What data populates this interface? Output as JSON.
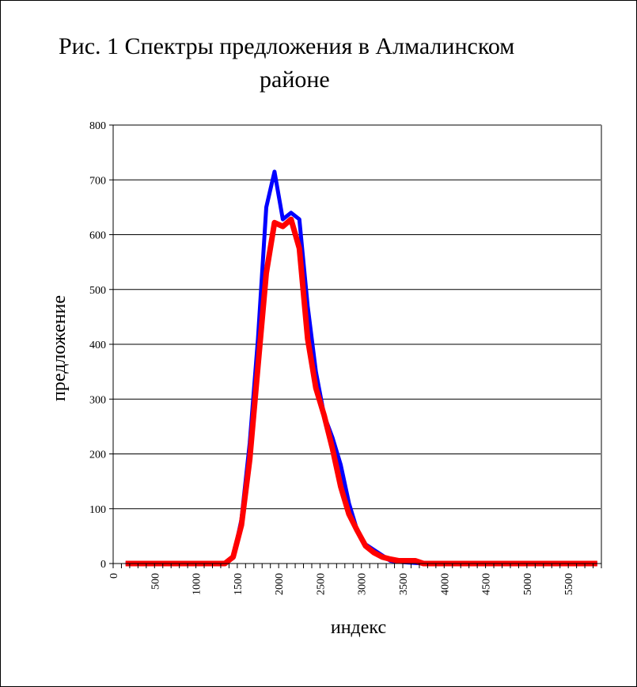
{
  "title_line1": "Рис. 1 Спектры предложения в Алмалинском",
  "title_line2": "районе",
  "chart_data": {
    "type": "line",
    "xlabel": "индекс",
    "ylabel": "предложение",
    "xlim": [
      0,
      5900
    ],
    "ylim": [
      0,
      800
    ],
    "yticks": [
      0,
      100,
      200,
      300,
      400,
      500,
      600,
      700,
      800
    ],
    "xticks": [
      0,
      500,
      1000,
      1500,
      2000,
      2500,
      3000,
      3500,
      4000,
      4500,
      5000,
      5500
    ],
    "grid": "horizontal",
    "series": [
      {
        "color": "#0000ff",
        "points": [
          [
            150,
            0
          ],
          [
            250,
            0
          ],
          [
            350,
            0
          ],
          [
            450,
            0
          ],
          [
            550,
            0
          ],
          [
            650,
            0
          ],
          [
            750,
            0
          ],
          [
            850,
            0
          ],
          [
            950,
            0
          ],
          [
            1050,
            0
          ],
          [
            1150,
            0
          ],
          [
            1250,
            0
          ],
          [
            1350,
            0
          ],
          [
            1450,
            10
          ],
          [
            1550,
            80
          ],
          [
            1650,
            220
          ],
          [
            1750,
            410
          ],
          [
            1850,
            650
          ],
          [
            1950,
            715
          ],
          [
            2050,
            628
          ],
          [
            2150,
            640
          ],
          [
            2250,
            628
          ],
          [
            2350,
            470
          ],
          [
            2450,
            350
          ],
          [
            2550,
            270
          ],
          [
            2650,
            230
          ],
          [
            2750,
            180
          ],
          [
            2850,
            110
          ],
          [
            2950,
            60
          ],
          [
            3050,
            35
          ],
          [
            3150,
            25
          ],
          [
            3250,
            15
          ],
          [
            3350,
            5
          ],
          [
            3450,
            3
          ],
          [
            3550,
            2
          ],
          [
            3650,
            1
          ],
          [
            3750,
            0
          ],
          [
            3850,
            0
          ],
          [
            3950,
            0
          ],
          [
            4050,
            0
          ],
          [
            4150,
            0
          ],
          [
            4250,
            0
          ],
          [
            4350,
            0
          ],
          [
            4450,
            0
          ],
          [
            4550,
            0
          ],
          [
            4650,
            0
          ],
          [
            4750,
            0
          ],
          [
            4850,
            0
          ],
          [
            4950,
            0
          ],
          [
            5050,
            0
          ],
          [
            5150,
            0
          ],
          [
            5250,
            0
          ],
          [
            5350,
            0
          ],
          [
            5450,
            0
          ],
          [
            5550,
            0
          ],
          [
            5650,
            0
          ],
          [
            5750,
            0
          ],
          [
            5850,
            0
          ]
        ]
      },
      {
        "color": "#ff0000",
        "points": [
          [
            150,
            0
          ],
          [
            250,
            0
          ],
          [
            350,
            0
          ],
          [
            450,
            0
          ],
          [
            550,
            0
          ],
          [
            650,
            0
          ],
          [
            750,
            0
          ],
          [
            850,
            0
          ],
          [
            950,
            0
          ],
          [
            1050,
            0
          ],
          [
            1150,
            0
          ],
          [
            1250,
            0
          ],
          [
            1350,
            0
          ],
          [
            1450,
            12
          ],
          [
            1550,
            70
          ],
          [
            1650,
            190
          ],
          [
            1750,
            360
          ],
          [
            1850,
            530
          ],
          [
            1950,
            622
          ],
          [
            2050,
            615
          ],
          [
            2150,
            628
          ],
          [
            2250,
            575
          ],
          [
            2350,
            410
          ],
          [
            2450,
            320
          ],
          [
            2550,
            270
          ],
          [
            2650,
            210
          ],
          [
            2750,
            140
          ],
          [
            2850,
            90
          ],
          [
            2950,
            60
          ],
          [
            3050,
            32
          ],
          [
            3150,
            20
          ],
          [
            3250,
            12
          ],
          [
            3350,
            8
          ],
          [
            3450,
            5
          ],
          [
            3550,
            5
          ],
          [
            3650,
            5
          ],
          [
            3750,
            0
          ],
          [
            3850,
            0
          ],
          [
            3950,
            0
          ],
          [
            4050,
            0
          ],
          [
            4150,
            0
          ],
          [
            4250,
            0
          ],
          [
            4350,
            0
          ],
          [
            4450,
            0
          ],
          [
            4550,
            0
          ],
          [
            4650,
            0
          ],
          [
            4750,
            0
          ],
          [
            4850,
            0
          ],
          [
            4950,
            0
          ],
          [
            5050,
            0
          ],
          [
            5150,
            0
          ],
          [
            5250,
            0
          ],
          [
            5350,
            0
          ],
          [
            5450,
            0
          ],
          [
            5550,
            0
          ],
          [
            5650,
            0
          ],
          [
            5750,
            0
          ],
          [
            5850,
            0
          ]
        ]
      }
    ]
  }
}
